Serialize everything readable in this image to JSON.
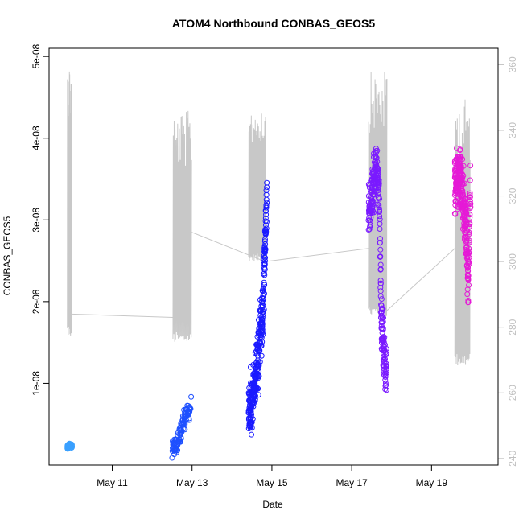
{
  "chart_data": {
    "type": "scatter",
    "title": "ATOM4 Northbound CONBAS_GEOS5",
    "xlabel": "Date",
    "ylabel": "CONBAS_GEOS5",
    "xlim": [
      "2018-05-09T10:00",
      "2018-05-20T16:00"
    ],
    "ylim": [
      0,
      5.1e-08
    ],
    "y2lim": [
      238,
      365
    ],
    "x_ticks": [
      {
        "date": "2018-05-11",
        "label": "May 11"
      },
      {
        "date": "2018-05-13",
        "label": "May 13"
      },
      {
        "date": "2018-05-15",
        "label": "May 15"
      },
      {
        "date": "2018-05-17",
        "label": "May 17"
      },
      {
        "date": "2018-05-19",
        "label": "May 19"
      }
    ],
    "y_ticks": [
      {
        "value": 1e-08,
        "label": "1e-08"
      },
      {
        "value": 2e-08,
        "label": "2e-08"
      },
      {
        "value": 3e-08,
        "label": "3e-08"
      },
      {
        "value": 4e-08,
        "label": "4e-08"
      },
      {
        "value": 5e-08,
        "label": "5e-08"
      }
    ],
    "y2_ticks": [
      {
        "value": 240,
        "label": "240"
      },
      {
        "value": 260,
        "label": "260"
      },
      {
        "value": 280,
        "label": "280"
      },
      {
        "value": 300,
        "label": "300"
      },
      {
        "value": 320,
        "label": "320"
      },
      {
        "value": 340,
        "label": "340"
      },
      {
        "value": 360,
        "label": "360"
      }
    ],
    "grid": false,
    "legend": "none",
    "colors": {
      "secondary_line": "#c8c8c8",
      "right_axis_text": "#c0c0c0",
      "frame": "#000000"
    },
    "point_series": [
      {
        "start": "2018-05-09T21:00",
        "end": "2018-05-09T23:50",
        "color": "#3aa0ff",
        "n": 70,
        "profile": [
          [
            0,
            2.2e-09
          ],
          [
            0.5,
            2.4e-09
          ],
          [
            1,
            2.3e-09
          ]
        ],
        "spread": 2.5e-10
      },
      {
        "start": "2018-05-12T12:00",
        "end": "2018-05-12T23:30",
        "color": "#1e50ff",
        "n": 110,
        "profile": [
          [
            0,
            2.2e-09
          ],
          [
            0.3,
            2.6e-09
          ],
          [
            0.45,
            4e-09
          ],
          [
            0.6,
            5.5e-09
          ],
          [
            0.75,
            6e-09
          ],
          [
            1,
            7e-09
          ]
        ],
        "spread": 1.2e-09
      },
      {
        "start": "2018-05-14T10:00",
        "end": "2018-05-14T21:00",
        "color": "#1a1aff",
        "n": 320,
        "profile": [
          [
            0,
            5.5e-09
          ],
          [
            0.2,
            8e-09
          ],
          [
            0.4,
            1.1e-08
          ],
          [
            0.6,
            1.5e-08
          ],
          [
            0.8,
            2e-08
          ],
          [
            1,
            3.2e-08
          ]
        ],
        "spread": 3.5e-09
      },
      {
        "start": "2018-05-17T10:00",
        "end": "2018-05-17T21:00",
        "color": "#7a1aff",
        "n": 260,
        "profile": [
          [
            0,
            3.05e-08
          ],
          [
            0.25,
            3.4e-08
          ],
          [
            0.45,
            3.7e-08
          ],
          [
            0.6,
            3.3e-08
          ],
          [
            0.7,
            1.8e-08
          ],
          [
            0.85,
            1.4e-08
          ],
          [
            1,
            1.1e-08
          ]
        ],
        "spread": 3e-09
      },
      {
        "start": "2018-05-19T14:00",
        "end": "2018-05-19T23:30",
        "color": "#e51ad6",
        "n": 300,
        "profile": [
          [
            0,
            3.4e-08
          ],
          [
            0.3,
            3.6e-08
          ],
          [
            0.5,
            3.3e-08
          ],
          [
            0.7,
            2.9e-08
          ],
          [
            0.85,
            2.3e-08
          ],
          [
            1,
            3.5e-08
          ]
        ],
        "spread": 3.5e-09
      }
    ],
    "secondary_line": {
      "axis": "right",
      "color": "#c8c8c8",
      "connectors": [
        {
          "x": "2018-05-09T23:30",
          "y": 284
        },
        {
          "x": "2018-05-12T12:30",
          "y": 283
        },
        {
          "x": "2018-05-12T23:30",
          "y": 309
        },
        {
          "x": "2018-05-14T10:00",
          "y": 302
        },
        {
          "x": "2018-05-14T20:00",
          "y": 300
        },
        {
          "x": "2018-05-17T10:00",
          "y": 304
        },
        {
          "x": "2018-05-17T21:00",
          "y": 285
        },
        {
          "x": "2018-05-19T14:00",
          "y": 304
        }
      ],
      "oscillation_segments": [
        {
          "start": "2018-05-09T21:00",
          "end": "2018-05-09T23:30",
          "low": 277,
          "high": 362,
          "n": 14
        },
        {
          "start": "2018-05-12T12:30",
          "end": "2018-05-12T23:30",
          "low": 275,
          "high": 346,
          "n": 22
        },
        {
          "start": "2018-05-14T10:00",
          "end": "2018-05-14T20:00",
          "low": 300,
          "high": 348,
          "n": 22
        },
        {
          "start": "2018-05-17T10:00",
          "end": "2018-05-17T21:00",
          "low": 283,
          "high": 358,
          "n": 24
        },
        {
          "start": "2018-05-19T14:00",
          "end": "2018-05-19T23:00",
          "low": 268,
          "high": 350,
          "n": 22
        }
      ]
    }
  }
}
